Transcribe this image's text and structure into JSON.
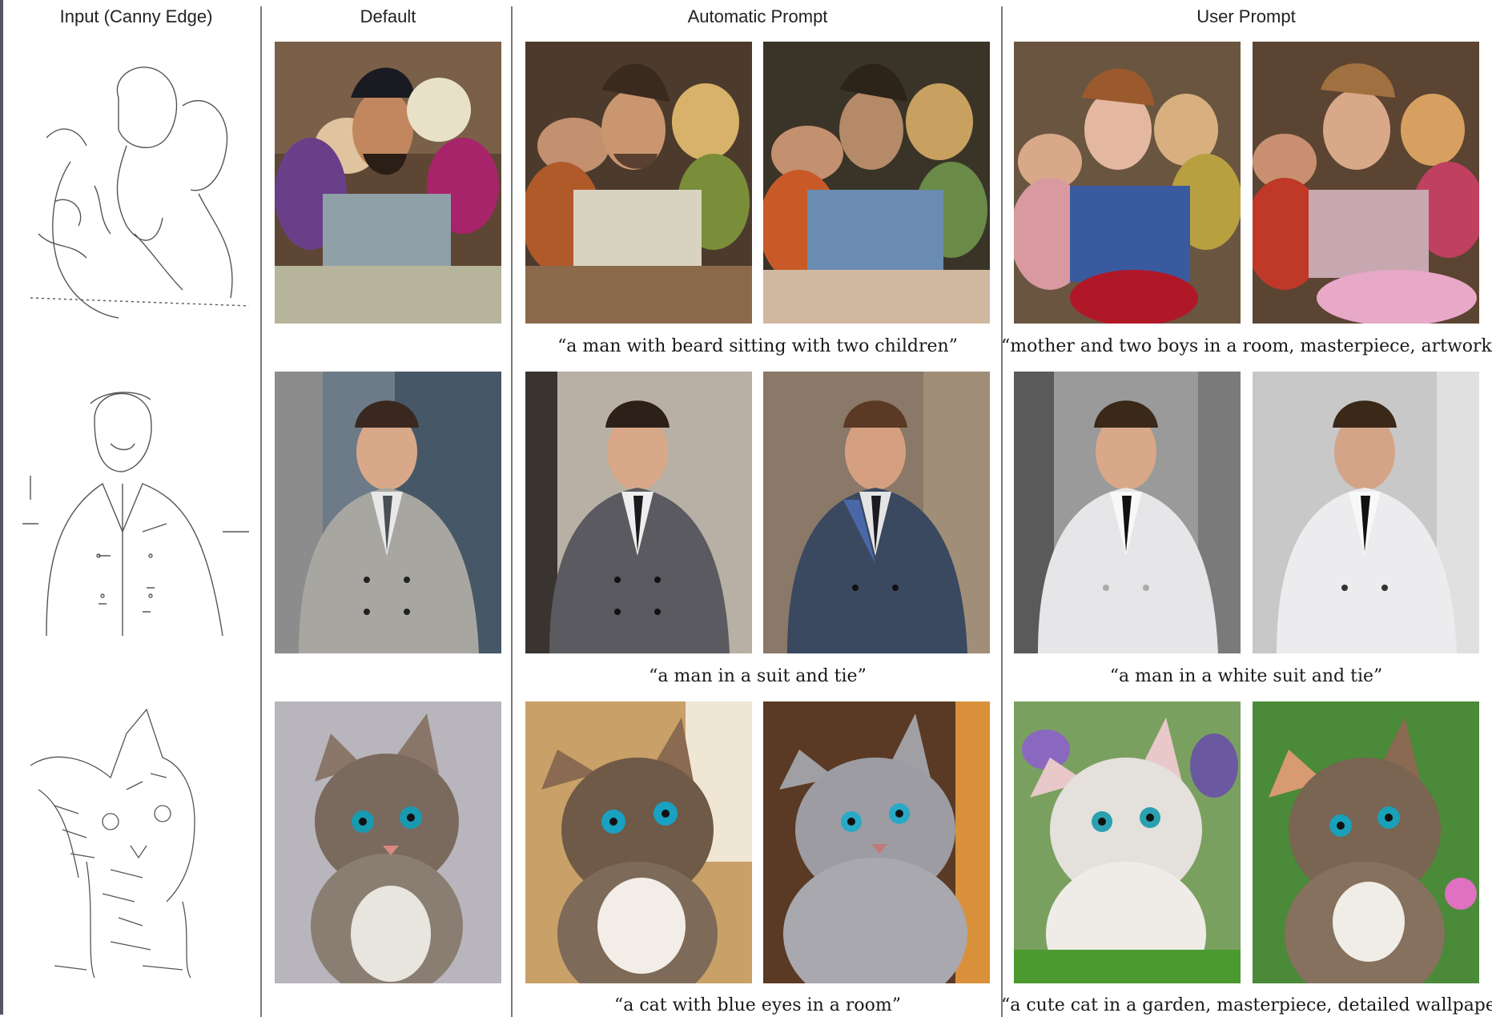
{
  "headers": {
    "input": "Input (Canny Edge)",
    "default": "Default",
    "automatic": "Automatic Prompt",
    "user": "User Prompt"
  },
  "rows": [
    {
      "subject": "man-with-children",
      "auto_caption": "“a man with beard sitting with two children”",
      "user_caption": "“mother and two boys in a room, masterpiece, artwork”"
    },
    {
      "subject": "man-in-suit",
      "auto_caption": "“a man in a suit and tie”",
      "user_caption": "“a man in a white suit and tie”"
    },
    {
      "subject": "kitten",
      "auto_caption": "“a cat with blue eyes in a room”",
      "user_caption": "“a cute cat in a garden, masterpiece, detailed wallpaper”"
    }
  ],
  "colors": {
    "divider": "#7a7a7a",
    "edge_stroke": "#555555"
  }
}
